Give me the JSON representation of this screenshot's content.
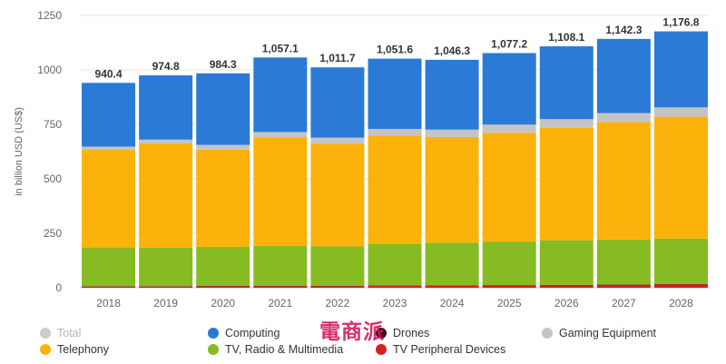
{
  "chart_data": {
    "type": "bar",
    "stacked": true,
    "ylabel": "in billion USD (US$)",
    "ylim": [
      0,
      1250
    ],
    "yticks": [
      0,
      250,
      500,
      750,
      1000,
      1250
    ],
    "grid": true,
    "legend_position": "bottom",
    "categories": [
      "2018",
      "2019",
      "2020",
      "2021",
      "2022",
      "2023",
      "2024",
      "2025",
      "2026",
      "2027",
      "2028"
    ],
    "totals": [
      940.4,
      974.8,
      984.3,
      1057.1,
      1011.7,
      1051.6,
      1046.3,
      1077.2,
      1108.1,
      1142.3,
      1176.8
    ],
    "total_labels": [
      "940.4",
      "974.8",
      "984.3",
      "1,057.1",
      "1,011.7",
      "1,051.6",
      "1,046.3",
      "1,077.2",
      "1,108.1",
      "1,142.3",
      "1,176.8"
    ],
    "series": [
      {
        "name": "TV Peripheral Devices",
        "color": "#d61f1f",
        "values": [
          5,
          5,
          6,
          6,
          6,
          8,
          9,
          10,
          11,
          13,
          15
        ]
      },
      {
        "name": "Drones",
        "color": "#3d1010",
        "values": [
          2,
          2,
          2,
          2,
          2,
          2,
          2,
          2,
          2,
          2,
          2
        ]
      },
      {
        "name": "TV, Radio & Multimedia",
        "color": "#86bb23",
        "values": [
          178,
          176,
          180,
          185,
          182,
          190,
          196,
          200,
          205,
          207,
          209
        ]
      },
      {
        "name": "Telephony",
        "color": "#fbb20a",
        "values": [
          448,
          480,
          446,
          498,
          471,
          498,
          485,
          499,
          516,
          538,
          559
        ]
      },
      {
        "name": "Gaming Equipment",
        "color": "#c4c4c4",
        "values": [
          15,
          17,
          22,
          24,
          28,
          31,
          34,
          38,
          40,
          42,
          43
        ]
      },
      {
        "name": "Computing",
        "color": "#2a7ad6",
        "values": [
          292.4,
          294.8,
          328.3,
          342.1,
          322.7,
          322.6,
          320.3,
          328.2,
          334.1,
          340.3,
          348.8
        ]
      }
    ]
  },
  "legend": [
    {
      "label": "Total",
      "color": "#cccccc",
      "muted": true
    },
    {
      "label": "Computing",
      "color": "#2a7ad6"
    },
    {
      "label": "Drones",
      "color": "#3d1010"
    },
    {
      "label": "Gaming Equipment",
      "color": "#c4c4c4"
    },
    {
      "label": "Telephony",
      "color": "#fbb20a"
    },
    {
      "label": "TV, Radio & Multimedia",
      "color": "#86bb23"
    },
    {
      "label": "TV Peripheral Devices",
      "color": "#d61f1f"
    }
  ],
  "watermark": "電商派"
}
